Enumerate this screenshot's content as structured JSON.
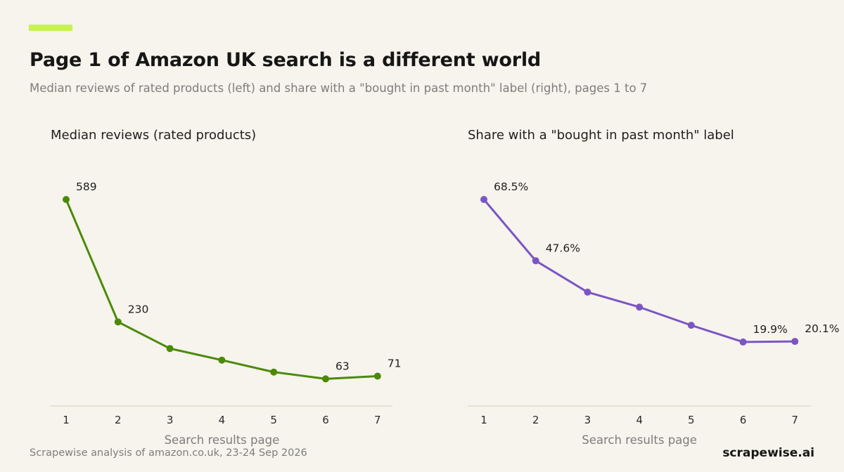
{
  "header": {
    "title": "Page 1 of Amazon UK search is a different world",
    "subtitle": "Median reviews of rated products (left) and share with a \"bought in past month\" label (right), pages 1 to 7"
  },
  "footer": {
    "source": "Scrapewise analysis of amazon.co.uk, 23-24 Sep 2026",
    "brand": "scrapewise.ai"
  },
  "colors": {
    "background": "#f6f4ec",
    "accent": "#c6f24e",
    "axis": "#dedbc9",
    "green": "#4b8a08",
    "purple": "#7b55c5"
  },
  "chart_data": [
    {
      "type": "line",
      "title": "Median reviews (rated products)",
      "xlabel": "Search results page",
      "ylabel": "",
      "x": [
        1,
        2,
        3,
        4,
        5,
        6,
        7
      ],
      "series": [
        {
          "values": [
            589,
            230,
            152,
            118,
            83,
            63,
            71
          ],
          "color": "#4b8a08"
        }
      ],
      "data_labels": [
        "589",
        "230",
        "",
        "",
        "",
        "63",
        "71"
      ],
      "grid": false,
      "legend": "none"
    },
    {
      "type": "line",
      "title": "Share with a \"bought in past month\" label",
      "xlabel": "Search results page",
      "ylabel": "",
      "x": [
        1,
        2,
        3,
        4,
        5,
        6,
        7
      ],
      "series": [
        {
          "values": [
            68.5,
            47.6,
            36.9,
            31.8,
            25.6,
            19.9,
            20.1
          ],
          "color": "#7b55c5"
        }
      ],
      "data_labels": [
        "68.5%",
        "47.6%",
        "",
        "",
        "",
        "19.9%",
        "20.1%"
      ],
      "grid": false,
      "legend": "none"
    }
  ]
}
